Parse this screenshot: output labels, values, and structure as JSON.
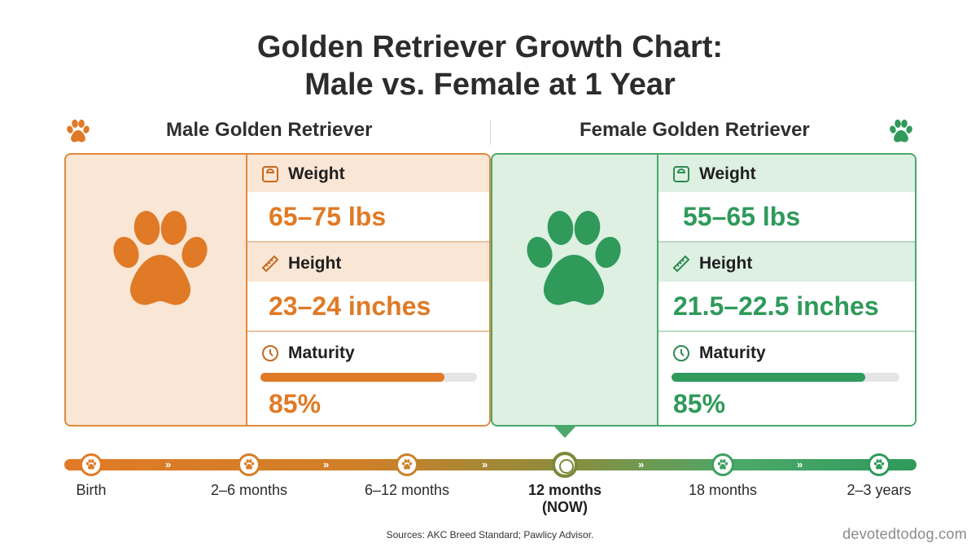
{
  "title": {
    "line1": "Golden Retriever Growth Chart:",
    "line2": "Male vs. Female at 1 Year"
  },
  "colors": {
    "male": "#e07a26",
    "female": "#2f9a5a"
  },
  "male": {
    "heading": "Male Golden Retriever",
    "weight_label": "Weight",
    "weight_value": "65–75 lbs",
    "height_label": "Height",
    "height_value": "23–24 inches",
    "maturity_label": "Maturity",
    "maturity_value": "85%",
    "maturity_fraction": 0.85
  },
  "female": {
    "heading": "Female Golden Retriever",
    "weight_label": "Weight",
    "weight_value": "55–65 lbs",
    "height_label": "Height",
    "height_value": "21.5–22.5 inches",
    "maturity_label": "Maturity",
    "maturity_value": "85%",
    "maturity_fraction": 0.85
  },
  "timeline": {
    "stages": [
      "Birth",
      "2–6 months",
      "6–12 months",
      "12 months",
      "18 months",
      "2–3 years"
    ],
    "current_suffix": "(NOW)"
  },
  "footer": {
    "sources": "Sources: AKC Breed Standard; Pawlicy Advisor.",
    "brand": "devotedtodog.com"
  }
}
